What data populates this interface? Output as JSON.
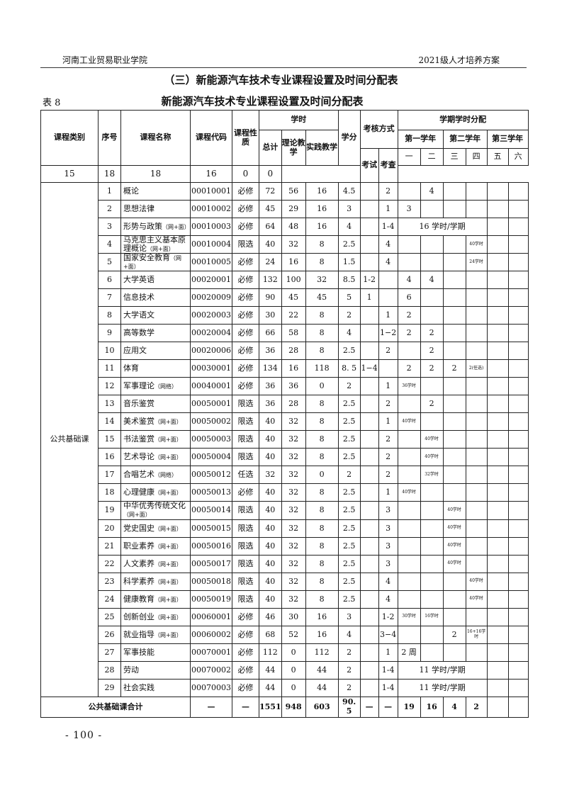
{
  "header": {
    "left": "河南工业贸易职业学院",
    "right": "2021级人才培养方案"
  },
  "section_title": "（三）新能源汽车技术专业课程设置及时间分配表",
  "table_no": "表 8",
  "table_title": "新能源汽车技术专业课程设置及时间分配表",
  "footer": "- 100 -",
  "table": {
    "headers": {
      "category": "课程类别",
      "seq": "序号",
      "name": "课程名称",
      "code": "课程代码",
      "nature": "课程性质",
      "hours": "学时",
      "total": "总计",
      "theory": "理论教学",
      "practice": "实践教学",
      "credit": "学分",
      "assess": "考核方式",
      "exam": "考试",
      "check": "考查",
      "sem_dist": "学期学时分配",
      "year1": "第一学年",
      "year2": "第二学年",
      "year3": "第三学年",
      "sems": [
        "一",
        "二",
        "三",
        "四",
        "五",
        "六"
      ],
      "weeks": [
        "15",
        "18",
        "18",
        "16",
        "0",
        "0"
      ]
    },
    "category": "公共基础课",
    "rows": [
      {
        "seq": "1",
        "name": "概论",
        "sub": "",
        "code": "00010001",
        "nature": "必修",
        "total": "72",
        "theory": "56",
        "practice": "16",
        "credit": "4.5",
        "exam": "",
        "check": "2",
        "sem": [
          "",
          "4",
          "",
          "",
          "",
          ""
        ]
      },
      {
        "seq": "2",
        "name": "思想法律",
        "sub": "",
        "code": "00010002",
        "nature": "必修",
        "total": "45",
        "theory": "29",
        "practice": "16",
        "credit": "3",
        "exam": "",
        "check": "1",
        "sem": [
          "3",
          "",
          "",
          "",
          "",
          ""
        ]
      },
      {
        "seq": "3",
        "name": "形势与政策",
        "sub": "（网+面）",
        "code": "00010003",
        "nature": "必修",
        "total": "64",
        "theory": "48",
        "practice": "16",
        "credit": "4",
        "exam": "",
        "check": "1-4",
        "span": "16 学时/学期",
        "sem": [
          "",
          ""
        ]
      },
      {
        "seq": "4",
        "name": "马克思主义基本原理概论",
        "sub": "（网+面）",
        "code": "00010004",
        "nature": "限选",
        "total": "40",
        "theory": "32",
        "practice": "8",
        "credit": "2.5",
        "exam": "",
        "check": "4",
        "sem": [
          "",
          "",
          "",
          "40学时",
          "",
          ""
        ]
      },
      {
        "seq": "5",
        "name": "国家安全教育",
        "sub": "（网+面）",
        "code": "00010005",
        "nature": "必修",
        "total": "24",
        "theory": "16",
        "practice": "8",
        "credit": "1.5",
        "exam": "",
        "check": "4",
        "sem": [
          "",
          "",
          "",
          "24学时",
          "",
          ""
        ]
      },
      {
        "seq": "6",
        "name": "大学英语",
        "sub": "",
        "code": "00020001",
        "nature": "必修",
        "total": "132",
        "theory": "100",
        "practice": "32",
        "credit": "8.5",
        "exam": "1-2",
        "check": "",
        "sem": [
          "4",
          "4",
          "",
          "",
          "",
          ""
        ]
      },
      {
        "seq": "7",
        "name": "信息技术",
        "sub": "",
        "code": "00020009",
        "nature": "必修",
        "total": "90",
        "theory": "45",
        "practice": "45",
        "credit": "5",
        "exam": "1",
        "check": "",
        "sem": [
          "6",
          "",
          "",
          "",
          "",
          ""
        ]
      },
      {
        "seq": "8",
        "name": "大学语文",
        "sub": "",
        "code": "00020003",
        "nature": "必修",
        "total": "30",
        "theory": "22",
        "practice": "8",
        "credit": "2",
        "exam": "",
        "check": "1",
        "sem": [
          "2",
          "",
          "",
          "",
          "",
          ""
        ]
      },
      {
        "seq": "9",
        "name": "高等数学",
        "sub": "",
        "code": "00020004",
        "nature": "必修",
        "total": "66",
        "theory": "58",
        "practice": "8",
        "credit": "4",
        "exam": "",
        "check": "1−2",
        "sem": [
          "2",
          "2",
          "",
          "",
          "",
          ""
        ]
      },
      {
        "seq": "10",
        "name": "应用文",
        "sub": "",
        "code": "00020006",
        "nature": "必修",
        "total": "36",
        "theory": "28",
        "practice": "8",
        "credit": "2.5",
        "exam": "",
        "check": "2",
        "sem": [
          "",
          "2",
          "",
          "",
          "",
          ""
        ]
      },
      {
        "seq": "11",
        "name": "体育",
        "sub": "",
        "code": "00030001",
        "nature": "必修",
        "total": "134",
        "theory": "16",
        "practice": "118",
        "credit": "8. 5",
        "exam": "1−4",
        "check": "",
        "sem": [
          "2",
          "2",
          "2",
          "2(任选)",
          "",
          ""
        ]
      },
      {
        "seq": "12",
        "name": "军事理论",
        "sub": "（网络）",
        "code": "00040001",
        "nature": "必修",
        "total": "36",
        "theory": "36",
        "practice": "0",
        "credit": "2",
        "exam": "",
        "check": "1",
        "sem": [
          "36学时",
          "",
          "",
          "",
          "",
          ""
        ]
      },
      {
        "seq": "13",
        "name": "音乐鉴赏",
        "sub": "",
        "code": "00050001",
        "nature": "限选",
        "total": "36",
        "theory": "28",
        "practice": "8",
        "credit": "2.5",
        "exam": "",
        "check": "2",
        "sem": [
          "",
          "2",
          "",
          "",
          "",
          ""
        ]
      },
      {
        "seq": "14",
        "name": "美术鉴赏",
        "sub": "（网+面）",
        "code": "00050002",
        "nature": "限选",
        "total": "40",
        "theory": "32",
        "practice": "8",
        "credit": "2.5",
        "exam": "",
        "check": "1",
        "sem": [
          "40学时",
          "",
          "",
          "",
          "",
          ""
        ]
      },
      {
        "seq": "15",
        "name": "书法鉴赏",
        "sub": "（网+面）",
        "code": "00050003",
        "nature": "限选",
        "total": "40",
        "theory": "32",
        "practice": "8",
        "credit": "2.5",
        "exam": "",
        "check": "2",
        "sem": [
          "",
          "40学时",
          "",
          "",
          "",
          ""
        ]
      },
      {
        "seq": "16",
        "name": "艺术导论",
        "sub": "（网+面）",
        "code": "00050004",
        "nature": "限选",
        "total": "40",
        "theory": "32",
        "practice": "8",
        "credit": "2.5",
        "exam": "",
        "check": "2",
        "sem": [
          "",
          "40学时",
          "",
          "",
          "",
          ""
        ]
      },
      {
        "seq": "17",
        "name": "合唱艺术",
        "sub": "（网络）",
        "code": "00050012",
        "nature": "任选",
        "total": "32",
        "theory": "32",
        "practice": "0",
        "credit": "2",
        "exam": "",
        "check": "2",
        "sem": [
          "",
          "32学时",
          "",
          "",
          "",
          ""
        ]
      },
      {
        "seq": "18",
        "name": "心理健康",
        "sub": "（网+面）",
        "code": "00050013",
        "nature": "必修",
        "total": "40",
        "theory": "32",
        "practice": "8",
        "credit": "2.5",
        "exam": "",
        "check": "1",
        "sem": [
          "40学时",
          "",
          "",
          "",
          "",
          ""
        ]
      },
      {
        "seq": "19",
        "name": "中华优秀传统文化",
        "sub": "（网+面）",
        "code": "00050014",
        "nature": "限选",
        "total": "40",
        "theory": "32",
        "practice": "8",
        "credit": "2.5",
        "exam": "",
        "check": "3",
        "sem": [
          "",
          "",
          "40学时",
          "",
          "",
          ""
        ]
      },
      {
        "seq": "20",
        "name": "党史国史",
        "sub": "（网+面）",
        "code": "00050015",
        "nature": "限选",
        "total": "40",
        "theory": "32",
        "practice": "8",
        "credit": "2.5",
        "exam": "",
        "check": "3",
        "sem": [
          "",
          "",
          "40学时",
          "",
          "",
          ""
        ]
      },
      {
        "seq": "21",
        "name": "职业素养",
        "sub": "（网+面）",
        "code": "00050016",
        "nature": "限选",
        "total": "40",
        "theory": "32",
        "practice": "8",
        "credit": "2.5",
        "exam": "",
        "check": "3",
        "sem": [
          "",
          "",
          "40学时",
          "",
          "",
          ""
        ]
      },
      {
        "seq": "22",
        "name": "人文素养",
        "sub": "（网+面）",
        "code": "00050017",
        "nature": "限选",
        "total": "40",
        "theory": "32",
        "practice": "8",
        "credit": "2.5",
        "exam": "",
        "check": "3",
        "sem": [
          "",
          "",
          "40学时",
          "",
          "",
          ""
        ]
      },
      {
        "seq": "23",
        "name": "科学素养",
        "sub": "（网+面）",
        "code": "00050018",
        "nature": "限选",
        "total": "40",
        "theory": "32",
        "practice": "8",
        "credit": "2.5",
        "exam": "",
        "check": "4",
        "sem": [
          "",
          "",
          "",
          "40学时",
          "",
          ""
        ]
      },
      {
        "seq": "24",
        "name": "健康教育",
        "sub": "（网+面）",
        "code": "00050019",
        "nature": "限选",
        "total": "40",
        "theory": "32",
        "practice": "8",
        "credit": "2.5",
        "exam": "",
        "check": "4",
        "sem": [
          "",
          "",
          "",
          "40学时",
          "",
          ""
        ]
      },
      {
        "seq": "25",
        "name": "创新创业",
        "sub": "（网+面）",
        "code": "00060001",
        "nature": "必修",
        "total": "46",
        "theory": "30",
        "practice": "16",
        "credit": "3",
        "exam": "",
        "check": "1-2",
        "sem": [
          "30学时",
          "16学时",
          "",
          "",
          "",
          ""
        ]
      },
      {
        "seq": "26",
        "name": "就业指导",
        "sub": "（网+面）",
        "code": "00060002",
        "nature": "必修",
        "total": "68",
        "theory": "52",
        "practice": "16",
        "credit": "4",
        "exam": "",
        "check": "3−4",
        "sem": [
          "",
          "",
          "2",
          "16+16学时",
          "",
          ""
        ]
      },
      {
        "seq": "27",
        "name": "军事技能",
        "sub": "",
        "code": "00070001",
        "nature": "必修",
        "total": "112",
        "theory": "0",
        "practice": "112",
        "credit": "2",
        "exam": "",
        "check": "1",
        "sem": [
          "2 周",
          "",
          "",
          "",
          "",
          ""
        ]
      },
      {
        "seq": "28",
        "name": "劳动",
        "sub": "",
        "code": "00070002",
        "nature": "必修",
        "total": "44",
        "theory": "0",
        "practice": "44",
        "credit": "2",
        "exam": "",
        "check": "1-4",
        "span": "11 学时/学期",
        "sem": [
          "",
          ""
        ]
      },
      {
        "seq": "29",
        "name": "社会实践",
        "sub": "",
        "code": "00070003",
        "nature": "必修",
        "total": "44",
        "theory": "0",
        "practice": "44",
        "credit": "2",
        "exam": "",
        "check": "1-4",
        "span": "11 学时/学期",
        "sem": [
          "",
          ""
        ]
      }
    ],
    "total_row": {
      "label": "公共基础课合计",
      "code": "—",
      "nature": "—",
      "total": "1551",
      "theory": "948",
      "practice": "603",
      "credit": "90. 5",
      "exam": "—",
      "check": "—",
      "sem": [
        "19",
        "16",
        "4",
        "2",
        "",
        ""
      ]
    }
  }
}
